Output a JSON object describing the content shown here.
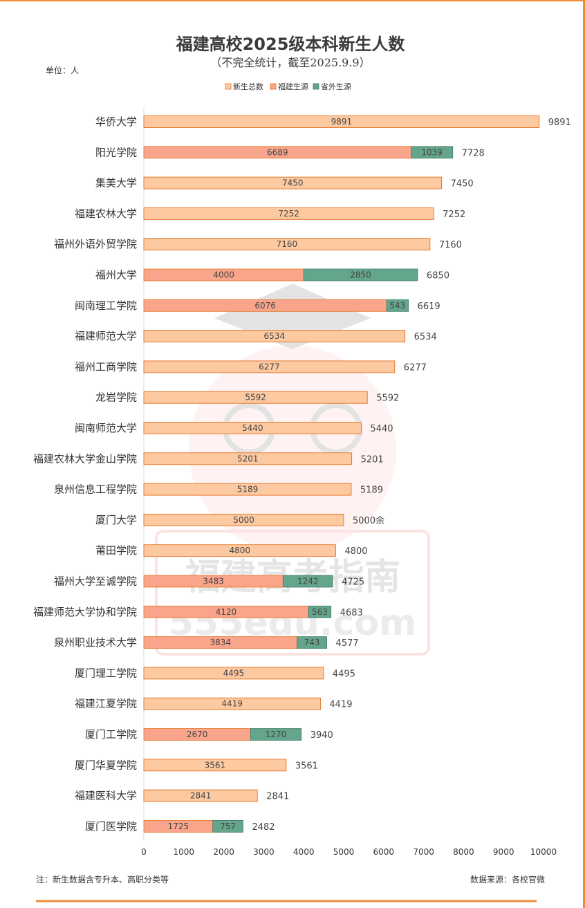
{
  "unit_label": "单位：人",
  "footnote": "注：新生数据含专升本、高职分类等",
  "source": "数据来源：各校官微",
  "watermark": {
    "line1": "福建高考指南",
    "line2": "555edu.com"
  },
  "colors": {
    "total": "#fdc9a1",
    "total_border": "#e5701f",
    "fujian": "#f9a58c",
    "outside": "#64a68c",
    "accent": "#f08a34"
  },
  "chart_data": {
    "type": "bar",
    "orientation": "horizontal",
    "stacked": true,
    "title": "福建高校2025级本科新生人数",
    "subtitle": "（不完全统计，截至2025.9.9）",
    "legend": [
      "新生总数",
      "福建生源",
      "省外生源"
    ],
    "legend_position": "top",
    "xlim": [
      0,
      10000
    ],
    "xticks": [
      0,
      1000,
      2000,
      3000,
      4000,
      5000,
      6000,
      7000,
      8000,
      9000,
      10000
    ],
    "grid": false,
    "rows": [
      {
        "name": "华侨大学",
        "total": 9891,
        "fujian": null,
        "outside": null,
        "total_label": "9891"
      },
      {
        "name": "阳光学院",
        "total": 7728,
        "fujian": 6689,
        "outside": 1039,
        "total_label": "7728"
      },
      {
        "name": "集美大学",
        "total": 7450,
        "fujian": null,
        "outside": null,
        "total_label": "7450"
      },
      {
        "name": "福建农林大学",
        "total": 7252,
        "fujian": null,
        "outside": null,
        "total_label": "7252"
      },
      {
        "name": "福州外语外贸学院",
        "total": 7160,
        "fujian": null,
        "outside": null,
        "total_label": "7160"
      },
      {
        "name": "福州大学",
        "total": 6850,
        "fujian": 4000,
        "outside": 2850,
        "total_label": "6850"
      },
      {
        "name": "闽南理工学院",
        "total": 6619,
        "fujian": 6076,
        "outside": 543,
        "total_label": "6619"
      },
      {
        "name": "福建师范大学",
        "total": 6534,
        "fujian": null,
        "outside": null,
        "total_label": "6534"
      },
      {
        "name": "福州工商学院",
        "total": 6277,
        "fujian": null,
        "outside": null,
        "total_label": "6277"
      },
      {
        "name": "龙岩学院",
        "total": 5592,
        "fujian": null,
        "outside": null,
        "total_label": "5592"
      },
      {
        "name": "闽南师范大学",
        "total": 5440,
        "fujian": null,
        "outside": null,
        "total_label": "5440"
      },
      {
        "name": "福建农林大学金山学院",
        "total": 5201,
        "fujian": null,
        "outside": null,
        "total_label": "5201"
      },
      {
        "name": "泉州信息工程学院",
        "total": 5189,
        "fujian": null,
        "outside": null,
        "total_label": "5189"
      },
      {
        "name": "厦门大学",
        "total": 5000,
        "fujian": null,
        "outside": null,
        "total_label": "5000余"
      },
      {
        "name": "莆田学院",
        "total": 4800,
        "fujian": null,
        "outside": null,
        "total_label": "4800"
      },
      {
        "name": "福州大学至诚学院",
        "total": 4725,
        "fujian": 3483,
        "outside": 1242,
        "total_label": "4725"
      },
      {
        "name": "福建师范大学协和学院",
        "total": 4683,
        "fujian": 4120,
        "outside": 563,
        "total_label": "4683"
      },
      {
        "name": "泉州职业技术大学",
        "total": 4577,
        "fujian": 3834,
        "outside": 743,
        "total_label": "4577"
      },
      {
        "name": "厦门理工学院",
        "total": 4495,
        "fujian": null,
        "outside": null,
        "total_label": "4495"
      },
      {
        "name": "福建江夏学院",
        "total": 4419,
        "fujian": null,
        "outside": null,
        "total_label": "4419"
      },
      {
        "name": "厦门工学院",
        "total": 3940,
        "fujian": 2670,
        "outside": 1270,
        "total_label": "3940"
      },
      {
        "name": "厦门华夏学院",
        "total": 3561,
        "fujian": null,
        "outside": null,
        "total_label": "3561"
      },
      {
        "name": "福建医科大学",
        "total": 2841,
        "fujian": null,
        "outside": null,
        "total_label": "2841"
      },
      {
        "name": "厦门医学院",
        "total": 2482,
        "fujian": 1725,
        "outside": 757,
        "total_label": "2482"
      }
    ]
  }
}
